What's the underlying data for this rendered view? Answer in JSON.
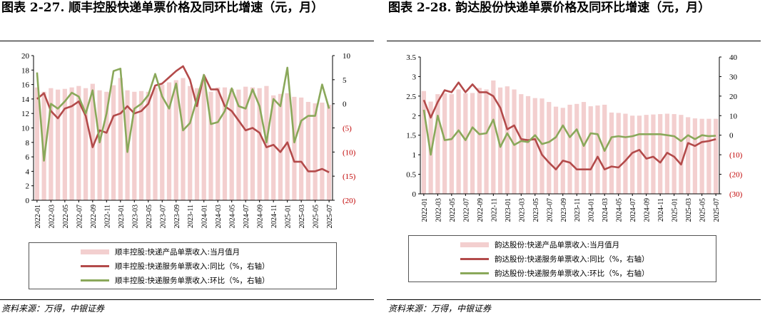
{
  "panels": [
    {
      "title": "图表 2-27. 顺丰控股快递单票价格及同环比增速（元，月）",
      "source": "资料来源：万得，中银证券",
      "legend": [
        "顺丰控股:快递产品单票收入:当月值月",
        "顺丰控股:快递服务单票收入:同比（%，右轴）",
        "顺丰控股:快递服务单票收入:环比（%，右轴）"
      ]
    },
    {
      "title": "图表 2-28. 韵达股份快递单票价格及同环比增速（元，月）",
      "source": "资料来源：万得，中银证券",
      "legend": [
        "韵达股份:快递产品单票收入:当月值月",
        "韵达股份:快递服务单票收入:同比（%，右轴）",
        "韵达股份:快递服务单票收入:环比（%，右轴）"
      ]
    }
  ],
  "chart_data": [
    {
      "type": "bar",
      "title": "顺丰控股快递单票价格及同环比增速（元，月）",
      "categories": [
        "2022-01",
        "2022-02",
        "2022-03",
        "2022-04",
        "2022-05",
        "2022-06",
        "2022-07",
        "2022-08",
        "2022-09",
        "2022-10",
        "2022-11",
        "2022-12",
        "2023-01",
        "2023-02",
        "2023-03",
        "2023-04",
        "2023-05",
        "2023-06",
        "2023-07",
        "2023-08",
        "2023-09",
        "2023-10",
        "2023-11",
        "2023-12",
        "2024-01",
        "2024-02",
        "2024-03",
        "2024-04",
        "2024-05",
        "2024-06",
        "2024-07",
        "2024-08",
        "2024-09",
        "2024-10",
        "2024-11",
        "2024-12",
        "2025-01",
        "2025-02",
        "2025-03",
        "2025-04",
        "2025-05",
        "2025-06",
        "2025-07"
      ],
      "tick_labels": [
        "2022-01",
        "2022-03",
        "2022-05",
        "2022-07",
        "2022-09",
        "2022-11",
        "2023-01",
        "2023-03",
        "2023-05",
        "2023-07",
        "2023-09",
        "2023-11",
        "2024-01",
        "2024-03",
        "2024-05",
        "2024-07",
        "2024-09",
        "2024-11",
        "2025-01",
        "2025-03",
        "2025-05",
        "2025-07"
      ],
      "series": [
        {
          "name": "顺丰控股:快递产品单票收入:当月值月",
          "axis": "left",
          "kind": "bar",
          "values": [
            15.6,
            15.0,
            15.5,
            15.3,
            15.4,
            15.6,
            15.8,
            15.5,
            16.1,
            15.2,
            15.0,
            15.9,
            16.9,
            15.2,
            15.0,
            15.1,
            15.0,
            15.6,
            16.0,
            16.3,
            16.6,
            16.9,
            15.8,
            15.5,
            16.6,
            15.0,
            15.6,
            15.6,
            15.4,
            15.3,
            15.7,
            15.6,
            15.5,
            15.8,
            14.5,
            14.7,
            14.8,
            14.3,
            14.2,
            13.6,
            13.4,
            13.5,
            13.2
          ]
        },
        {
          "name": "顺丰控股:快递服务单票收入:同比（%，右轴）",
          "axis": "right",
          "kind": "line",
          "values": [
            1.0,
            2.2,
            -1.5,
            -3.0,
            -1.0,
            -0.5,
            0.5,
            -2.5,
            -9.0,
            -5.5,
            -6.0,
            -2.5,
            -2.0,
            -0.5,
            -2.0,
            -1.5,
            0.0,
            3.8,
            4.2,
            5.5,
            6.8,
            7.8,
            5.0,
            -0.5,
            6.0,
            3.0,
            3.0,
            -0.5,
            -1.5,
            -3.5,
            -5.5,
            -5.0,
            -6.0,
            -9.0,
            -8.5,
            -10.0,
            -8.0,
            -12.0,
            -12.0,
            -14.0,
            -14.0,
            -13.5,
            -14.2
          ]
        },
        {
          "name": "顺丰控股:快递服务单票收入:环比（%，右轴）",
          "axis": "right",
          "kind": "line",
          "values": [
            6.5,
            -11.8,
            0.0,
            -1.0,
            0.5,
            2.3,
            1.5,
            -2.0,
            2.8,
            -8.0,
            -2.0,
            6.8,
            7.3,
            -10.0,
            -1.0,
            0.0,
            1.8,
            6.2,
            1.5,
            -1.0,
            4.2,
            -5.5,
            -4.0,
            1.0,
            6.0,
            -4.2,
            -3.8,
            -1.5,
            3.2,
            -0.5,
            -1.0,
            3.0,
            -0.5,
            -8.0,
            1.0,
            -0.5,
            7.5,
            -8.0,
            -3.5,
            -2.5,
            -2.5,
            4.0,
            -1.0
          ]
        }
      ],
      "left_axis": {
        "ylim": [
          0,
          20
        ],
        "ticks": [
          0,
          2,
          4,
          6,
          8,
          10,
          12,
          14,
          16,
          18,
          20
        ]
      },
      "right_axis": {
        "ylim": [
          -20,
          10
        ],
        "ticks": [
          10,
          5,
          0,
          -5,
          -10,
          -15,
          -20
        ],
        "tick_labels": [
          "10",
          "5",
          "0",
          "(5)",
          "(10)",
          "(15)",
          "(20)"
        ]
      }
    },
    {
      "type": "bar",
      "title": "韵达股份快递单票价格及同环比增速（元，月）",
      "categories": [
        "2022-01",
        "2022-02",
        "2022-03",
        "2022-04",
        "2022-05",
        "2022-06",
        "2022-07",
        "2022-08",
        "2022-09",
        "2022-10",
        "2022-11",
        "2022-12",
        "2023-01",
        "2023-02",
        "2023-03",
        "2023-04",
        "2023-05",
        "2023-06",
        "2023-07",
        "2023-08",
        "2023-09",
        "2023-10",
        "2023-11",
        "2023-12",
        "2024-01",
        "2024-02",
        "2024-03",
        "2024-04",
        "2024-05",
        "2024-06",
        "2024-07",
        "2024-08",
        "2024-09",
        "2024-10",
        "2024-11",
        "2024-12",
        "2025-01",
        "2025-02",
        "2025-03",
        "2025-04",
        "2025-05",
        "2025-06",
        "2025-07"
      ],
      "tick_labels": [
        "2022-01",
        "2022-03",
        "2022-05",
        "2022-07",
        "2022-09",
        "2022-11",
        "2023-01",
        "2023-03",
        "2023-05",
        "2023-07",
        "2023-09",
        "2023-11",
        "2024-01",
        "2024-03",
        "2024-05",
        "2024-07",
        "2024-09",
        "2024-11",
        "2025-01",
        "2025-03",
        "2025-05",
        "2025-07"
      ],
      "series": [
        {
          "name": "韵达股份:快递产品单票收入:当月值月",
          "axis": "left",
          "kind": "bar",
          "values": [
            2.63,
            2.36,
            2.55,
            2.57,
            2.55,
            2.67,
            2.57,
            2.58,
            2.71,
            2.67,
            2.9,
            2.72,
            2.75,
            2.67,
            2.55,
            2.5,
            2.45,
            2.44,
            2.35,
            2.23,
            2.2,
            2.28,
            2.3,
            2.35,
            2.24,
            2.26,
            2.28,
            2.08,
            2.07,
            2.05,
            2.0,
            2.0,
            2.02,
            2.03,
            2.04,
            2.05,
            2.04,
            2.02,
            1.96,
            1.93,
            1.92,
            1.92,
            1.92
          ]
        },
        {
          "name": "韵达股份:快递服务单票收入:同比（%，右轴）",
          "axis": "right",
          "kind": "line",
          "values": [
            18.0,
            9.0,
            17.0,
            23.0,
            22.0,
            27.0,
            22.0,
            26.0,
            22.0,
            22.0,
            20.0,
            14.0,
            3.0,
            5.0,
            -2.0,
            -2.5,
            -2.0,
            -10.0,
            -14.0,
            -17.5,
            -13.0,
            -14.0,
            -17.5,
            -17.5,
            -17.5,
            -11.0,
            -17.5,
            -16.0,
            -16.5,
            -13.0,
            -9.0,
            -7.5,
            -12.0,
            -11.0,
            -14.0,
            -9.0,
            -11.0,
            -15.0,
            -4.0,
            -5.5,
            -3.5,
            -3.0,
            -2.0
          ]
        },
        {
          "name": "韵达股份:快递服务单票收入:环比（%，右轴）",
          "axis": "right",
          "kind": "line",
          "values": [
            13.0,
            -10.0,
            10.0,
            -2.5,
            -2.0,
            2.5,
            -2.5,
            4.0,
            0.5,
            1.0,
            8.0,
            -6.0,
            1.0,
            -5.0,
            -3.0,
            -3.5,
            0.0,
            -4.5,
            -3.5,
            -1.0,
            5.0,
            -1.0,
            3.0,
            -5.5,
            1.0,
            0.5,
            -8.0,
            -1.0,
            -0.5,
            -1.0,
            -0.5,
            0.5,
            0.5,
            0.5,
            0.5,
            0.0,
            -0.5,
            -3.0,
            0.0,
            -2.0,
            0.0,
            -0.5,
            -0.3
          ]
        }
      ],
      "left_axis": {
        "ylim": [
          0,
          3.5
        ],
        "ticks": [
          0,
          0.5,
          1,
          1.5,
          2,
          2.5,
          3,
          3.5
        ],
        "tick_labels": [
          "0",
          "0.5",
          "1",
          "1.5",
          "2",
          "2.5",
          "3",
          "3.5"
        ]
      },
      "right_axis": {
        "ylim": [
          -30,
          40
        ],
        "ticks": [
          40,
          30,
          20,
          10,
          0,
          -10,
          -20,
          -30
        ],
        "tick_labels": [
          "40",
          "30",
          "20",
          "10",
          "0",
          "(10)",
          "(20)",
          "(30)"
        ]
      }
    }
  ],
  "colors": {
    "bar": "#f3cfcf",
    "yoy": "#b34a4a",
    "mom": "#8aa85a",
    "neg_tick": "#c00000"
  }
}
